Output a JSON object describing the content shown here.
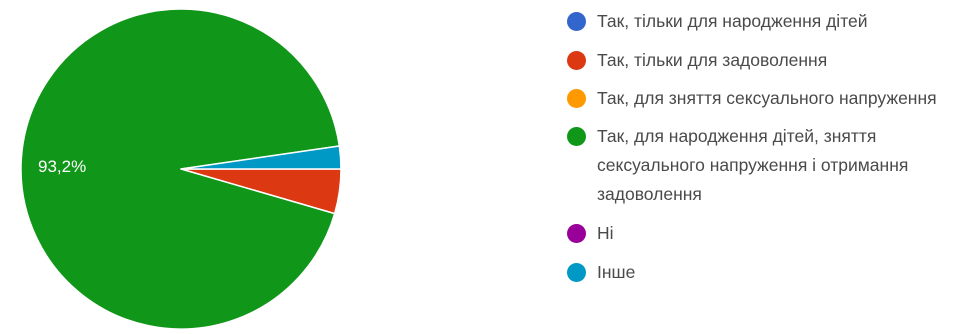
{
  "chart_data": {
    "type": "pie",
    "title": "",
    "series": [
      {
        "categories": [
          "Так, тільки для народження дітей",
          "Так, тільки для задоволення",
          "Так, для зняття сексуального напруження",
          "Так, для народження дітей, зняття сексуального напруження і отримання задоволення",
          "Ні",
          "Інше"
        ],
        "values": [
          0,
          4.5,
          0,
          93.2,
          0,
          2.3
        ],
        "colors": [
          "#3366cc",
          "#dc3912",
          "#ff9900",
          "#109618",
          "#990099",
          "#0099c6"
        ]
      }
    ],
    "slice_labels": [
      "",
      "",
      "",
      "93,2%",
      "",
      ""
    ],
    "legend_position": "right",
    "start_angle_deg": 0,
    "direction": "clockwise"
  }
}
